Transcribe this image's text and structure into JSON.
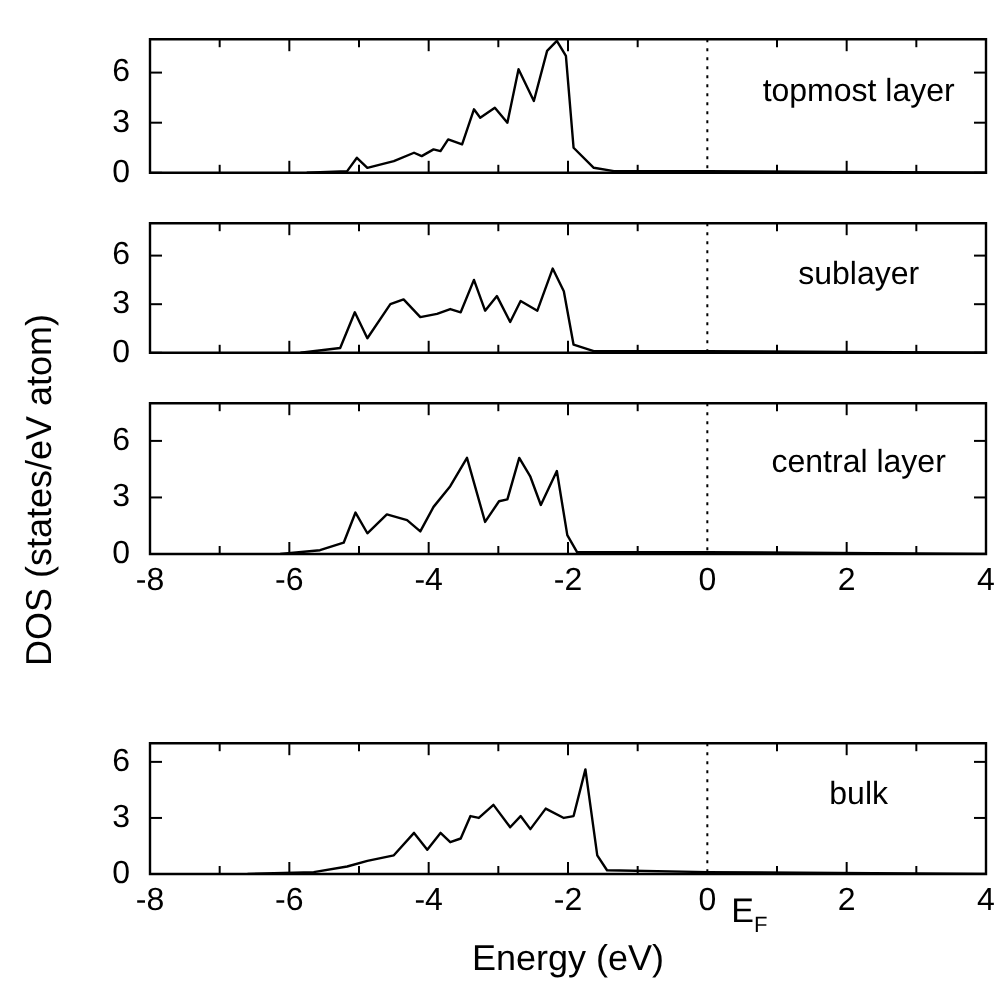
{
  "chart_data": [
    {
      "type": "line",
      "ylabel": "DOS (states/eV atom)",
      "xlim": [
        -8,
        4
      ],
      "xticks": [
        -8,
        {
          "value": -7,
          "label": null
        },
        -6,
        {
          "value": -5,
          "label": null
        },
        -4,
        {
          "value": -3,
          "label": null
        },
        -2,
        {
          "value": -1,
          "label": null
        },
        0,
        {
          "value": 1,
          "label": null
        },
        2,
        {
          "value": 3,
          "label": null
        },
        4
      ],
      "ylim": [
        0,
        8
      ],
      "yticks": [
        0,
        3,
        6
      ],
      "tick_labels": "y",
      "grid": false,
      "legend": false,
      "marker": "none",
      "line_style": "solid",
      "annotations": [
        "topmost layer"
      ],
      "ref_lines": [
        {
          "axis": "x",
          "value": 0,
          "line_style": "dotted"
        }
      ],
      "series": [
        {
          "color": "#000000",
          "x": [
            -5.75,
            -5.17,
            -5.03,
            -4.88,
            -4.5,
            -4.21,
            -4.1,
            -3.93,
            -3.83,
            -3.72,
            -3.52,
            -3.35,
            -3.26,
            -3.05,
            -2.87,
            -2.71,
            -2.49,
            -2.3,
            -2.16,
            -2.03,
            -1.92,
            -1.63,
            -1.34,
            0,
            4
          ],
          "values": [
            0,
            0.1,
            0.9,
            0.3,
            0.7,
            1.2,
            1.0,
            1.4,
            1.3,
            2.0,
            1.7,
            3.8,
            3.3,
            3.9,
            3.0,
            6.2,
            4.3,
            7.3,
            7.9,
            7.0,
            1.5,
            0.3,
            0.1,
            0.1,
            0
          ]
        }
      ]
    },
    {
      "type": "line",
      "xlim": [
        -8,
        4
      ],
      "xticks": [
        -8,
        {
          "value": -7,
          "label": null
        },
        -6,
        {
          "value": -5,
          "label": null
        },
        -4,
        {
          "value": -3,
          "label": null
        },
        -2,
        {
          "value": -1,
          "label": null
        },
        0,
        {
          "value": 1,
          "label": null
        },
        2,
        {
          "value": 3,
          "label": null
        },
        4
      ],
      "ylim": [
        0,
        8
      ],
      "yticks": [
        0,
        3,
        6
      ],
      "tick_labels": "y",
      "grid": false,
      "legend": false,
      "marker": "none",
      "line_style": "solid",
      "annotations": [
        "sublayer"
      ],
      "ref_lines": [
        {
          "axis": "x",
          "value": 0,
          "line_style": "dotted"
        }
      ],
      "series": [
        {
          "color": "#000000",
          "x": [
            -5.84,
            -5.27,
            -5.06,
            -4.88,
            -4.55,
            -4.36,
            -4.12,
            -3.88,
            -3.69,
            -3.54,
            -3.35,
            -3.19,
            -3.02,
            -2.83,
            -2.68,
            -2.44,
            -2.22,
            -2.06,
            -1.92,
            -1.63,
            0,
            4
          ],
          "values": [
            0,
            0.3,
            2.5,
            0.9,
            3.0,
            3.3,
            2.2,
            2.4,
            2.7,
            2.5,
            4.5,
            2.6,
            3.5,
            1.9,
            3.2,
            2.6,
            5.2,
            3.8,
            0.5,
            0.1,
            0.1,
            0
          ]
        }
      ]
    },
    {
      "type": "line",
      "xlim": [
        -8,
        4
      ],
      "xticks": [
        -8,
        {
          "value": -7,
          "label": null
        },
        -6,
        {
          "value": -5,
          "label": null
        },
        -4,
        {
          "value": -3,
          "label": null
        },
        -2,
        {
          "value": -1,
          "label": null
        },
        0,
        {
          "value": 1,
          "label": null
        },
        2,
        {
          "value": 3,
          "label": null
        },
        4
      ],
      "ylim": [
        0,
        8
      ],
      "yticks": [
        0,
        3,
        6
      ],
      "grid": false,
      "legend": false,
      "marker": "none",
      "line_style": "solid",
      "annotations": [
        "central layer"
      ],
      "ref_lines": [
        {
          "axis": "x",
          "value": 0,
          "line_style": "dotted"
        }
      ],
      "series": [
        {
          "color": "#000000",
          "x": [
            -6.13,
            -5.56,
            -5.22,
            -5.05,
            -4.88,
            -4.6,
            -4.31,
            -4.12,
            -3.93,
            -3.69,
            -3.45,
            -3.19,
            -2.99,
            -2.87,
            -2.7,
            -2.54,
            -2.39,
            -2.16,
            -2.01,
            -1.87,
            0,
            4
          ],
          "values": [
            0,
            0.2,
            0.6,
            2.2,
            1.1,
            2.1,
            1.8,
            1.2,
            2.5,
            3.6,
            5.1,
            1.7,
            2.8,
            2.9,
            5.1,
            4.1,
            2.6,
            4.4,
            1.0,
            0.1,
            0.1,
            0
          ]
        }
      ]
    },
    {
      "type": "line",
      "xlabel": "Energy (eV)",
      "xlim": [
        -8,
        4
      ],
      "xticks": [
        -8,
        {
          "value": -7,
          "label": null
        },
        -6,
        {
          "value": -5,
          "label": null
        },
        -4,
        {
          "value": -3,
          "label": null
        },
        -2,
        {
          "value": -1,
          "label": null
        },
        0,
        {
          "value": 1,
          "label": null
        },
        2,
        {
          "value": 3,
          "label": null
        },
        4
      ],
      "ylim": [
        0,
        7
      ],
      "yticks": [
        0,
        3,
        6
      ],
      "grid": false,
      "legend": false,
      "marker": "none",
      "line_style": "solid",
      "annotations": [
        "bulk"
      ],
      "ref_lines": [
        {
          "axis": "x",
          "value": 0,
          "line_style": "dotted",
          "label": "E$_{F}$"
        }
      ],
      "series": [
        {
          "color": "#000000",
          "x": [
            -6.6,
            -5.65,
            -5.17,
            -4.88,
            -4.5,
            -4.21,
            -4.02,
            -3.83,
            -3.69,
            -3.54,
            -3.4,
            -3.28,
            -3.07,
            -2.83,
            -2.68,
            -2.54,
            -2.32,
            -2.06,
            -1.92,
            -1.75,
            -1.58,
            -1.44,
            0,
            4
          ],
          "values": [
            0,
            0.1,
            0.4,
            0.7,
            1.0,
            2.2,
            1.3,
            2.2,
            1.7,
            1.9,
            3.1,
            3.0,
            3.7,
            2.5,
            3.1,
            2.4,
            3.5,
            3.0,
            3.1,
            5.6,
            1.0,
            0.2,
            0.1,
            0
          ]
        }
      ]
    }
  ]
}
